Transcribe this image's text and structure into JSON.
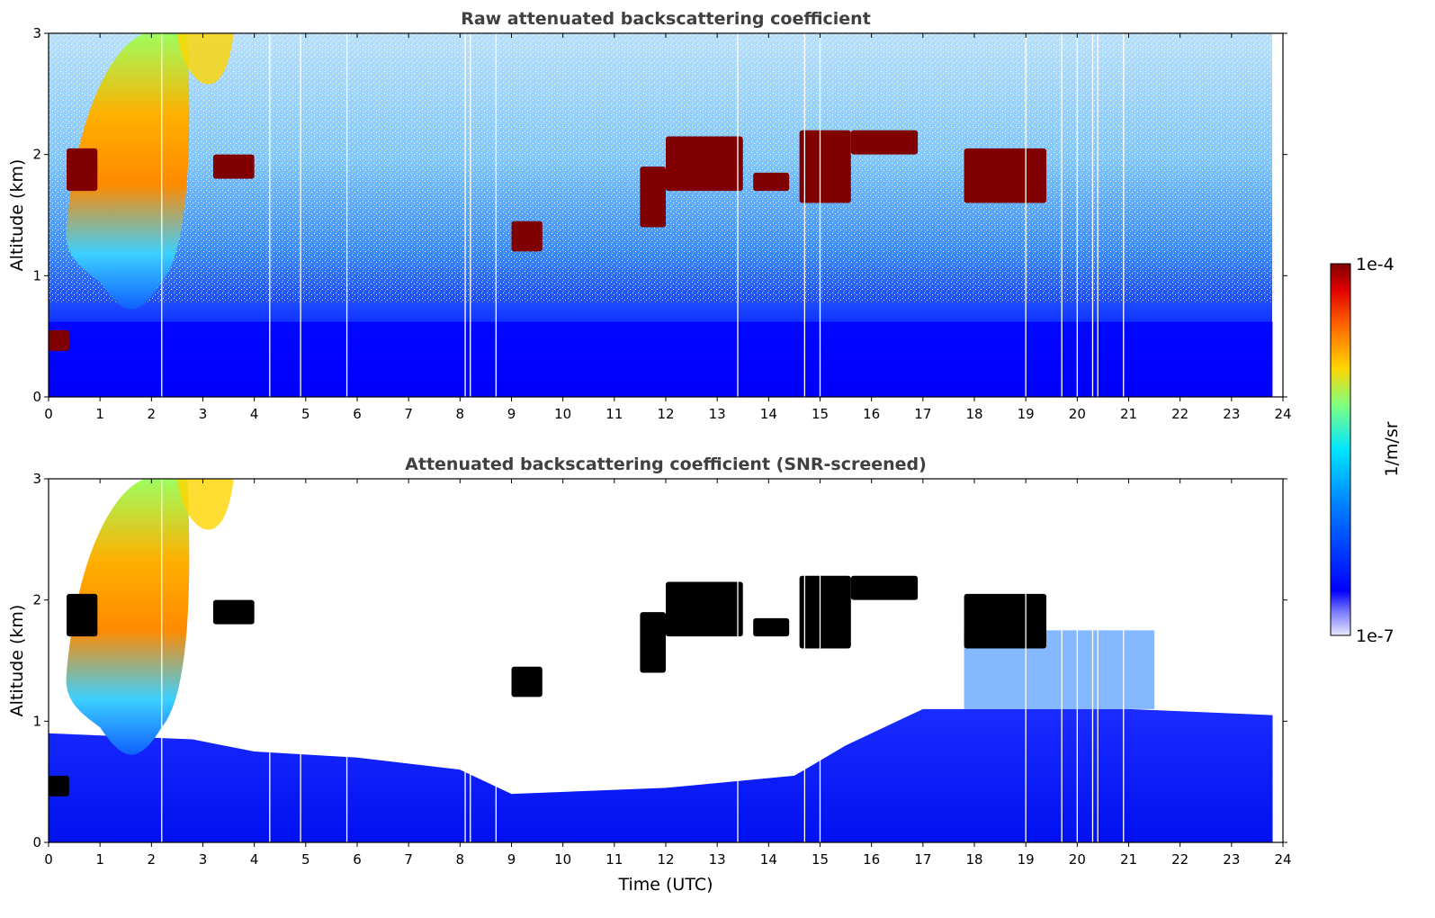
{
  "chart_data": [
    {
      "type": "heatmap",
      "title": "Raw attenuated backscattering coefficient",
      "xlabel": "",
      "ylabel": "Altitude (km)",
      "xlim": [
        0,
        24
      ],
      "ylim": [
        0,
        3
      ],
      "xticks": [
        "0",
        "1",
        "2",
        "3",
        "4",
        "5",
        "6",
        "7",
        "8",
        "9",
        "10",
        "11",
        "12",
        "13",
        "14",
        "15",
        "16",
        "17",
        "18",
        "19",
        "20",
        "21",
        "22",
        "23",
        "24"
      ],
      "yticks": [
        "0",
        "1",
        "2",
        "3"
      ],
      "features": [
        {
          "label": "aerosol plume",
          "x_start": 0.3,
          "x_end": 2.8,
          "alt_bottom": 0.7,
          "alt_top": 3.0
        },
        {
          "label": "low cloud",
          "x_start": 0.0,
          "x_end": 0.4,
          "alt_bottom": 0.38,
          "alt_top": 0.55
        },
        {
          "label": "cloud layer",
          "x_start": 0.35,
          "x_end": 0.95,
          "alt_bottom": 1.7,
          "alt_top": 2.05
        },
        {
          "label": "cloud layer",
          "x_start": 3.2,
          "x_end": 4.0,
          "alt_bottom": 1.8,
          "alt_top": 2.0
        },
        {
          "label": "cloud layer",
          "x_start": 9.0,
          "x_end": 19.4,
          "alt_bottom": 1.2,
          "alt_top": 2.2
        },
        {
          "label": "boundary layer",
          "x_start": 0.0,
          "x_end": 23.8,
          "alt_bottom": 0.0,
          "alt_top": 0.6
        }
      ]
    },
    {
      "type": "heatmap",
      "title": "Attenuated backscattering coefficient (SNR-screened)",
      "xlabel": "Time (UTC)",
      "ylabel": "Altitude (km)",
      "xlim": [
        0,
        24
      ],
      "ylim": [
        0,
        3
      ],
      "xticks": [
        "0",
        "1",
        "2",
        "3",
        "4",
        "5",
        "6",
        "7",
        "8",
        "9",
        "10",
        "11",
        "12",
        "13",
        "14",
        "15",
        "16",
        "17",
        "18",
        "19",
        "20",
        "21",
        "22",
        "23",
        "24"
      ],
      "yticks": [
        "0",
        "1",
        "2",
        "3"
      ],
      "boundary_layer_top": [
        [
          0,
          0.9
        ],
        [
          2.8,
          0.85
        ],
        [
          4,
          0.75
        ],
        [
          6,
          0.7
        ],
        [
          8,
          0.6
        ],
        [
          9,
          0.4
        ],
        [
          12,
          0.45
        ],
        [
          14.5,
          0.55
        ],
        [
          15.5,
          0.8
        ],
        [
          17,
          1.1
        ],
        [
          19,
          1.1
        ],
        [
          21,
          1.1
        ],
        [
          23.8,
          1.05
        ]
      ]
    }
  ],
  "colorbar": {
    "label": "1/m/sr",
    "max_label": "1e-4",
    "min_label": "1e-7",
    "scale": "log",
    "colormap": "jet"
  },
  "colors": {
    "deep_blue": "#0000ff",
    "cyan": "#00e5ff",
    "yellow": "#ffd400",
    "orange": "#ff8000",
    "dark_red": "#800000",
    "title_gray": "#404040"
  }
}
